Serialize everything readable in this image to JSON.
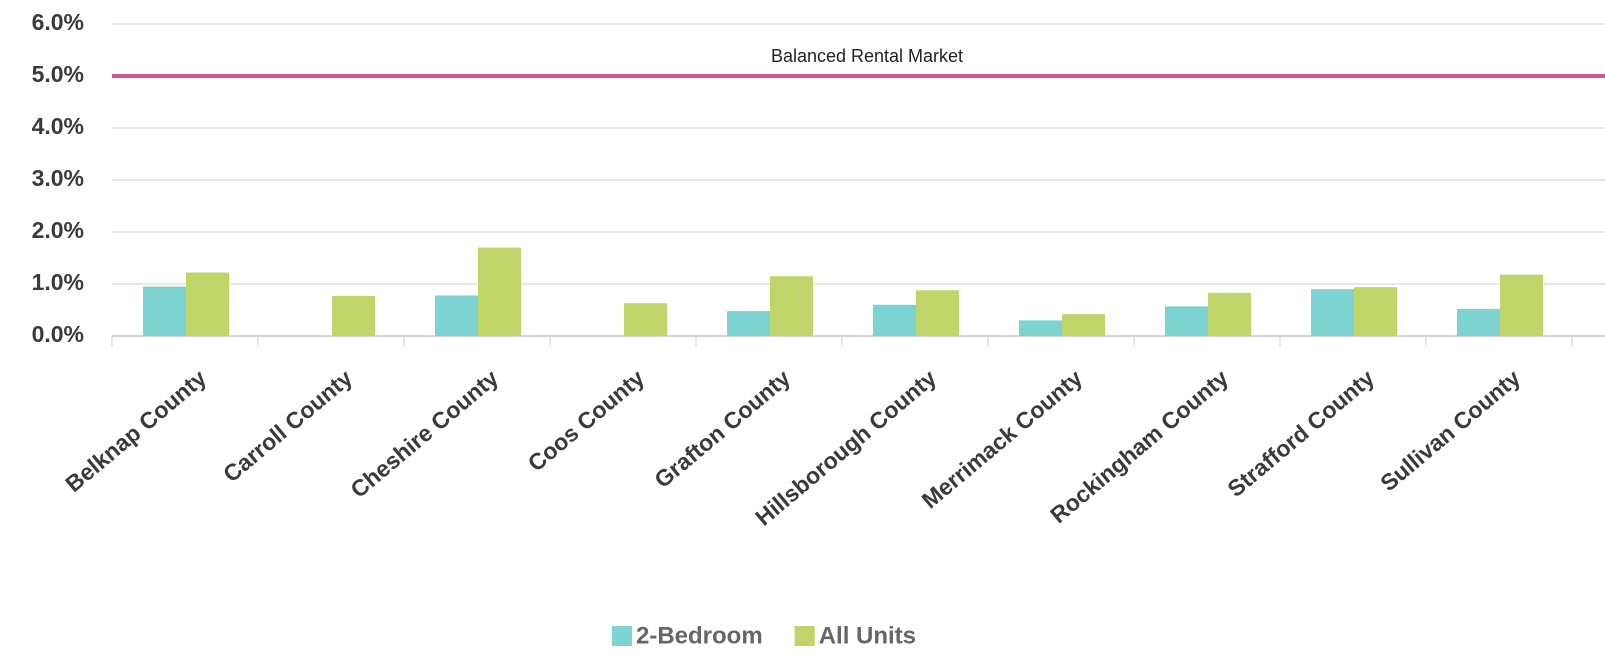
{
  "chart_data": {
    "type": "bar",
    "categories": [
      "Belknap County",
      "Carroll County",
      "Cheshire County",
      "Coos County",
      "Grafton County",
      "Hillsborough County",
      "Merrimack County",
      "Rockingham County",
      "Strafford County",
      "Sullivan County"
    ],
    "series": [
      {
        "name": "2-Bedroom",
        "color": "#7dd3d2",
        "values": [
          0.95,
          null,
          0.78,
          null,
          0.48,
          0.6,
          0.3,
          0.57,
          0.9,
          0.52
        ]
      },
      {
        "name": "All Units",
        "color": "#bfd56a",
        "values": [
          1.22,
          0.77,
          1.7,
          0.63,
          1.15,
          0.88,
          0.42,
          0.83,
          0.94,
          1.18
        ]
      }
    ],
    "ylim": [
      0,
      6
    ],
    "yticks": [
      {
        "value": 0,
        "label": "0.0%"
      },
      {
        "value": 1,
        "label": "1.0%"
      },
      {
        "value": 2,
        "label": "2.0%"
      },
      {
        "value": 3,
        "label": "3.0%"
      },
      {
        "value": 4,
        "label": "4.0%"
      },
      {
        "value": 5,
        "label": "5.0%"
      },
      {
        "value": 6,
        "label": "6.0%"
      }
    ],
    "grid": true,
    "reference_lines": [
      {
        "value": 5,
        "label": "Balanced Rental Market",
        "color": "#d6558f"
      }
    ],
    "legend": "bottom"
  }
}
